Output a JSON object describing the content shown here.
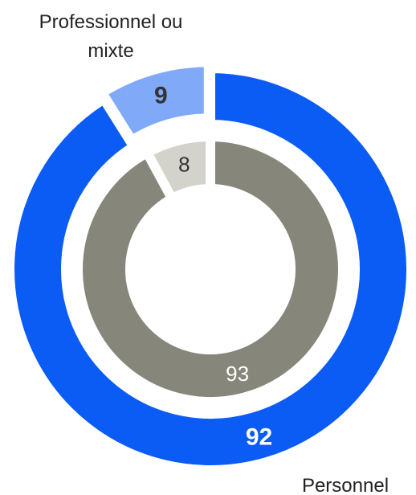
{
  "chart_data": {
    "type": "nested-donut",
    "categories": [
      "Personnel",
      "Professionnel ou mixte"
    ],
    "series": [
      {
        "colors": [
          "#0a5cf5",
          "#80aaf8"
        ],
        "values": [
          92,
          9
        ]
      },
      {
        "colors": [
          "#86877a",
          "#d3d3cb"
        ],
        "values": [
          93,
          8
        ]
      }
    ]
  }
}
